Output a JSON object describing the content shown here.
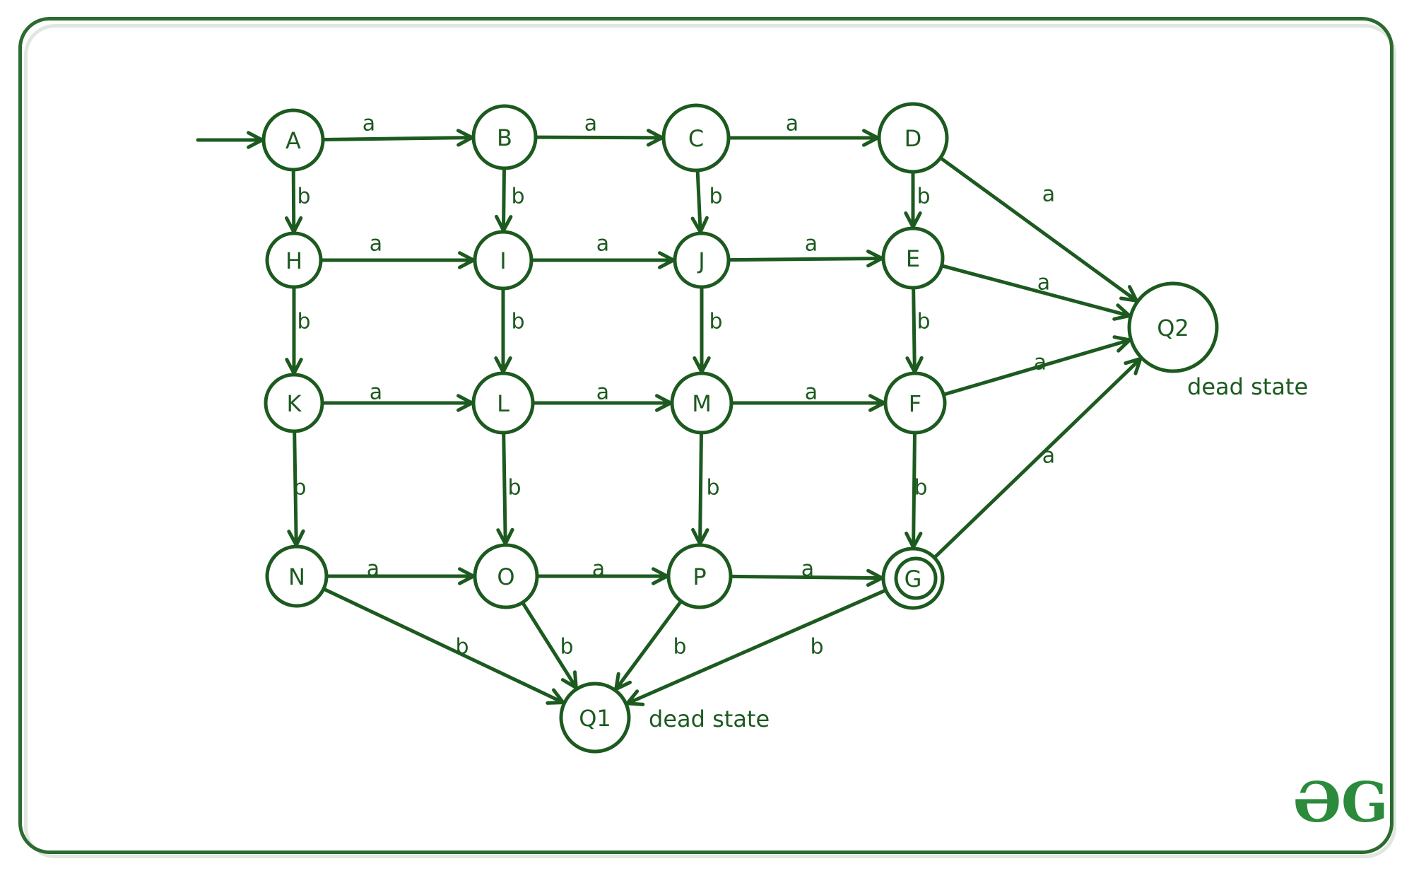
{
  "diagram": {
    "states": [
      {
        "id": "A",
        "label": "A"
      },
      {
        "id": "B",
        "label": "B"
      },
      {
        "id": "C",
        "label": "C"
      },
      {
        "id": "D",
        "label": "D"
      },
      {
        "id": "H",
        "label": "H"
      },
      {
        "id": "I",
        "label": "I"
      },
      {
        "id": "J",
        "label": "J"
      },
      {
        "id": "E",
        "label": "E"
      },
      {
        "id": "K",
        "label": "K"
      },
      {
        "id": "L",
        "label": "L"
      },
      {
        "id": "M",
        "label": "M"
      },
      {
        "id": "F",
        "label": "F"
      },
      {
        "id": "N",
        "label": "N"
      },
      {
        "id": "O",
        "label": "O"
      },
      {
        "id": "P",
        "label": "P"
      },
      {
        "id": "G",
        "label": "G",
        "final": true
      },
      {
        "id": "Q1",
        "label": "Q1"
      },
      {
        "id": "Q2",
        "label": "Q2"
      }
    ],
    "start_state": "A",
    "transitions": [
      {
        "from": "A",
        "to": "B",
        "label": "a"
      },
      {
        "from": "B",
        "to": "C",
        "label": "a"
      },
      {
        "from": "C",
        "to": "D",
        "label": "a"
      },
      {
        "from": "A",
        "to": "H",
        "label": "b"
      },
      {
        "from": "B",
        "to": "I",
        "label": "b"
      },
      {
        "from": "C",
        "to": "J",
        "label": "b"
      },
      {
        "from": "D",
        "to": "E",
        "label": "b"
      },
      {
        "from": "D",
        "to": "Q2",
        "label": "a"
      },
      {
        "from": "H",
        "to": "I",
        "label": "a"
      },
      {
        "from": "I",
        "to": "J",
        "label": "a"
      },
      {
        "from": "J",
        "to": "E",
        "label": "a"
      },
      {
        "from": "E",
        "to": "Q2",
        "label": "a"
      },
      {
        "from": "H",
        "to": "K",
        "label": "b"
      },
      {
        "from": "I",
        "to": "L",
        "label": "b"
      },
      {
        "from": "J",
        "to": "M",
        "label": "b"
      },
      {
        "from": "E",
        "to": "F",
        "label": "b"
      },
      {
        "from": "K",
        "to": "L",
        "label": "a"
      },
      {
        "from": "L",
        "to": "M",
        "label": "a"
      },
      {
        "from": "M",
        "to": "F",
        "label": "a"
      },
      {
        "from": "F",
        "to": "Q2",
        "label": "a"
      },
      {
        "from": "K",
        "to": "N",
        "label": "b"
      },
      {
        "from": "L",
        "to": "O",
        "label": "b"
      },
      {
        "from": "M",
        "to": "P",
        "label": "b"
      },
      {
        "from": "F",
        "to": "G",
        "label": "b"
      },
      {
        "from": "N",
        "to": "O",
        "label": "a"
      },
      {
        "from": "O",
        "to": "P",
        "label": "a"
      },
      {
        "from": "P",
        "to": "G",
        "label": "a"
      },
      {
        "from": "G",
        "to": "Q2",
        "label": "a"
      },
      {
        "from": "N",
        "to": "Q1",
        "label": "b"
      },
      {
        "from": "O",
        "to": "Q1",
        "label": "b"
      },
      {
        "from": "P",
        "to": "Q1",
        "label": "b"
      },
      {
        "from": "G",
        "to": "Q1",
        "label": "b"
      }
    ],
    "annotations": [
      {
        "attach": "Q2",
        "text": "dead state"
      },
      {
        "attach": "Q1",
        "text": "dead state"
      }
    ]
  },
  "logo": {
    "text": "ƏG",
    "color": "#2c8a3c"
  },
  "colors": {
    "line": "#1c5a1f",
    "frame": "#2c6a30"
  }
}
